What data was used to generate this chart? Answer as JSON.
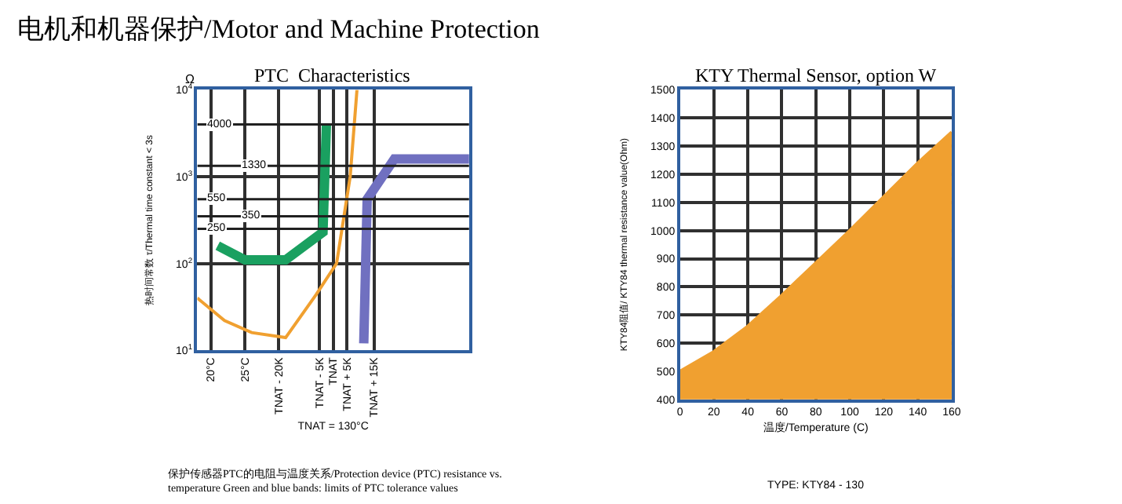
{
  "chart_data": [
    {
      "type": "line",
      "title": "PTC  Characteristics",
      "xlabel": "TNAT = 130°C",
      "ylabel": "热时间常数 τ/Thermal time constant < 3s",
      "log": "y",
      "ylim": [
        10,
        10000
      ],
      "categories": [
        null,
        null,
        null,
        null,
        "20°C",
        null,
        null,
        null,
        null,
        null,
        null,
        null,
        null,
        null,
        "25°C",
        null,
        null,
        null,
        null,
        null,
        null,
        null,
        null,
        null,
        "TNAT - 20K",
        null,
        null,
        null,
        null,
        null,
        null,
        null,
        null,
        null,
        null,
        null,
        "TNAT - 5K",
        null,
        null,
        null,
        "TNAT",
        null,
        null,
        null,
        "TNAT + 5K",
        null,
        null,
        null,
        null,
        null,
        null,
        null,
        "TNAT + 15K",
        null,
        null,
        null,
        null,
        null,
        null,
        null,
        null,
        null,
        null,
        null,
        null,
        null,
        null,
        null,
        null,
        null,
        null,
        null,
        null,
        null,
        null,
        null,
        null,
        null,
        null,
        null,
        null
      ],
      "yticks": [
        {
          "value": 10,
          "label": "10$^{1}$"
        },
        {
          "value": 100,
          "label": "10$^{2}$"
        },
        {
          "value": 1000,
          "label": "10$^{3}$"
        },
        {
          "value": 10000,
          "label": "10$^{4}$"
        }
      ],
      "grid": true,
      "series": [
        {
          "color": "#f0a030",
          "values": [
            40,
            null,
            null,
            null,
            null,
            null,
            null,
            null,
            22,
            null,
            null,
            null,
            null,
            null,
            null,
            null,
            16,
            null,
            null,
            null,
            null,
            null,
            null,
            null,
            null,
            null,
            14,
            null,
            null,
            null,
            null,
            null,
            null,
            null,
            null,
            44,
            null,
            null,
            null,
            null,
            null,
            100,
            null,
            null,
            null,
            1000,
            null,
            10000,
            null,
            null,
            null,
            null,
            null,
            null,
            null,
            null,
            null,
            null,
            null,
            null,
            null,
            null,
            null,
            null,
            null,
            null,
            null,
            null,
            null,
            null,
            null,
            null,
            null,
            null,
            null,
            null,
            null,
            null,
            null,
            null,
            null
          ]
        },
        {
          "color": "#1aa060",
          "values": [
            null,
            null,
            null,
            null,
            null,
            null,
            160,
            null,
            null,
            null,
            null,
            null,
            null,
            null,
            110,
            null,
            null,
            null,
            null,
            null,
            null,
            null,
            null,
            null,
            null,
            null,
            110,
            null,
            null,
            null,
            null,
            null,
            null,
            null,
            null,
            null,
            null,
            230,
            4000,
            null,
            null,
            null,
            null,
            null,
            null,
            null,
            null,
            null,
            null,
            null,
            null,
            null,
            null,
            null,
            null,
            null,
            null,
            null,
            null,
            null,
            null,
            null,
            null,
            null,
            null,
            null,
            null,
            null,
            null,
            null,
            null,
            null,
            null,
            null,
            null,
            null,
            null,
            null,
            null,
            null,
            null
          ]
        },
        {
          "color": "#7070c0",
          "values": [
            null,
            null,
            null,
            null,
            null,
            null,
            null,
            null,
            null,
            null,
            null,
            null,
            null,
            null,
            null,
            null,
            null,
            null,
            null,
            null,
            null,
            null,
            null,
            null,
            null,
            null,
            null,
            null,
            null,
            null,
            null,
            null,
            null,
            null,
            null,
            null,
            null,
            null,
            null,
            null,
            null,
            null,
            null,
            null,
            null,
            null,
            null,
            null,
            null,
            12,
            550,
            null,
            null,
            null,
            null,
            null,
            null,
            null,
            1600,
            null,
            null,
            null,
            null,
            null,
            null,
            null,
            null,
            null,
            null,
            null,
            null,
            null,
            null,
            null,
            null,
            null,
            null,
            null,
            null,
            null,
            1600
          ]
        }
      ],
      "ref_lines": [
        {
          "axis": "y",
          "value": 250,
          "label": "250"
        },
        {
          "axis": "y",
          "value": 350,
          "label": "350"
        },
        {
          "axis": "y",
          "value": 550,
          "label": "550"
        },
        {
          "axis": "y",
          "value": 1330,
          "label": "1330"
        },
        {
          "axis": "y",
          "value": 4000,
          "label": "4000"
        }
      ],
      "annotations": [
        "电机和机器保护/Motor and Machine Protection",
        "Ω",
        "保护传感器PTC的电阻与温度关系/Protection device (PTC) resistance vs.\ntemperature Green and blue bands: limits of PTC tolerance values"
      ]
    },
    {
      "type": "area",
      "title": "KTY Thermal Sensor, option W",
      "xlabel": "温度/Temperature (C)",
      "ylabel": "KTY84阻值/ KTY84 thermal resistance value(Ohm)",
      "xlim": [
        0,
        160
      ],
      "ylim": [
        400,
        1500
      ],
      "xticks": [
        0,
        20,
        40,
        60,
        80,
        100,
        120,
        140,
        160
      ],
      "yticks": [
        400,
        500,
        600,
        700,
        800,
        900,
        1000,
        1100,
        1200,
        1300,
        1400,
        1500
      ],
      "grid": true,
      "x": [
        0,
        20,
        40,
        60,
        80,
        100,
        120,
        140,
        160
      ],
      "series": [
        {
          "color": "#f0a030",
          "values": [
            500,
            570,
            660,
            770,
            885,
            1000,
            1120,
            1240,
            1350
          ]
        }
      ],
      "annotations": [
        "TYPE: KTY84 - 130"
      ]
    }
  ]
}
